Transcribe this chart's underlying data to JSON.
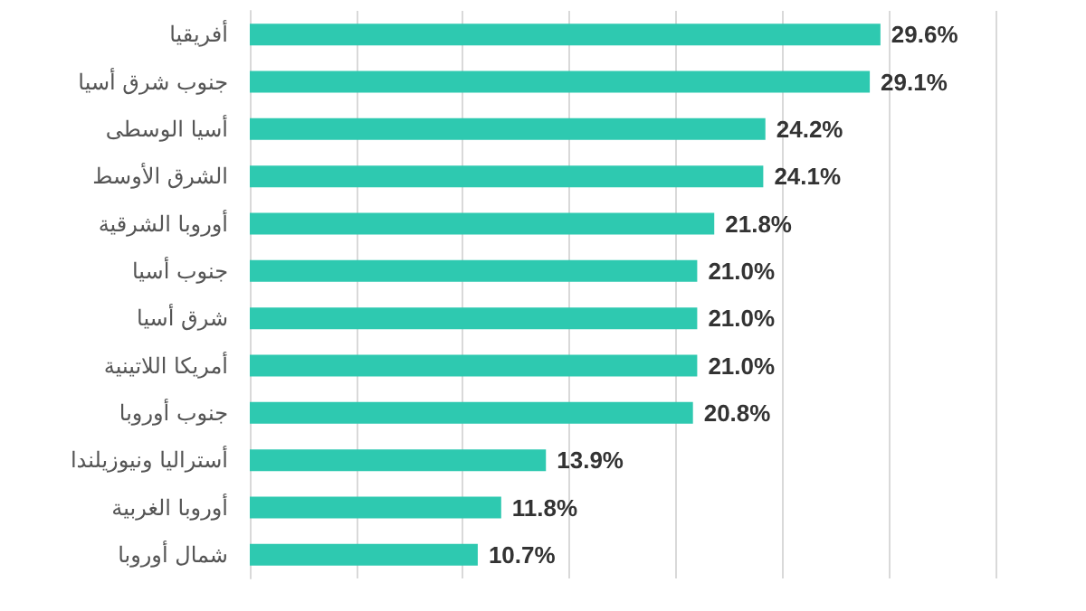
{
  "chart_data": {
    "type": "bar",
    "orientation": "horizontal",
    "categories": [
      "أفريقيا",
      "جنوب شرق أسيا",
      "أسيا الوسطى",
      "الشرق الأوسط",
      "أوروبا الشرقية",
      "جنوب أسيا",
      "شرق أسيا",
      "أمريكا اللاتينية",
      "جنوب أوروبا",
      "أستراليا ونيوزيلندا",
      "أوروبا الغربية",
      "شمال أوروبا"
    ],
    "values": [
      29.6,
      29.1,
      24.2,
      24.1,
      21.8,
      21.0,
      21.0,
      21.0,
      20.8,
      13.9,
      11.8,
      10.7
    ],
    "value_labels": [
      "29.6%",
      "29.1%",
      "24.2%",
      "24.1%",
      "21.8%",
      "21.0%",
      "21.0%",
      "21.0%",
      "20.8%",
      "13.9%",
      "11.8%",
      "10.7%"
    ],
    "color": "#2ec9b0",
    "xlim": [
      0,
      35
    ],
    "xticks": [
      {
        "value": 0,
        "label": null
      },
      {
        "value": 5,
        "label": null
      },
      {
        "value": 10,
        "label": null
      },
      {
        "value": 15,
        "label": null
      },
      {
        "value": 20,
        "label": null
      },
      {
        "value": 25,
        "label": null
      },
      {
        "value": 30,
        "label": null
      },
      {
        "value": 35,
        "label": null
      }
    ],
    "grid": "x"
  }
}
